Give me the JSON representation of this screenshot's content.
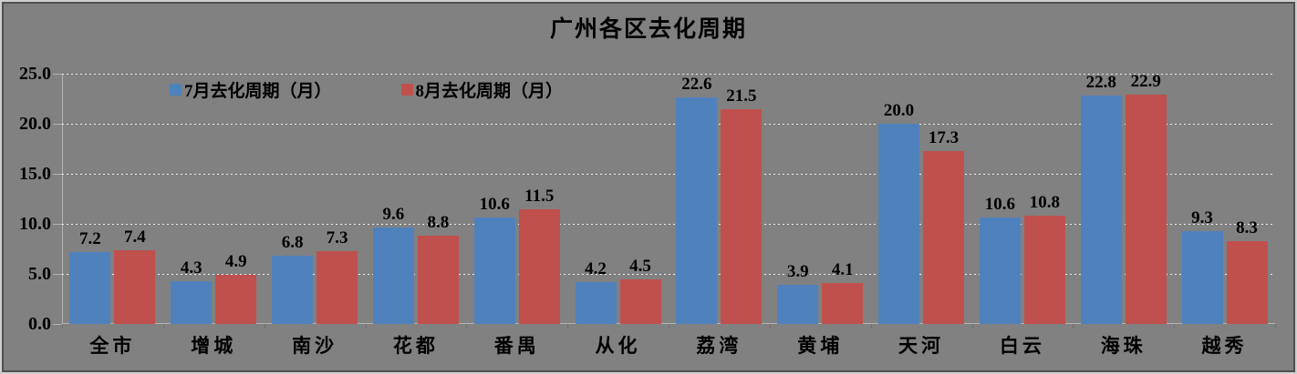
{
  "chart_data": {
    "type": "bar",
    "title": "广州各区去化周期",
    "categories": [
      "全市",
      "增城",
      "南沙",
      "花都",
      "番禺",
      "从化",
      "荔湾",
      "黄埔",
      "天河",
      "白云",
      "海珠",
      "越秀"
    ],
    "series": [
      {
        "name": "7月去化周期（月）",
        "color": "#4F81BD",
        "values": [
          7.2,
          4.3,
          6.8,
          9.6,
          10.6,
          4.2,
          22.6,
          3.9,
          20.0,
          10.6,
          22.8,
          9.3
        ]
      },
      {
        "name": "8月去化周期（月）",
        "color": "#C0504D",
        "values": [
          7.4,
          4.9,
          7.3,
          8.8,
          11.5,
          4.5,
          21.5,
          4.1,
          17.3,
          10.8,
          22.9,
          8.3
        ]
      }
    ],
    "xlabel": "",
    "ylabel": "",
    "ylim": [
      0,
      25
    ],
    "y_ticks": [
      "25.0",
      "20.0",
      "15.0",
      "10.0",
      "5.0",
      "0.0"
    ],
    "grid": "horizontal white dotted",
    "legend_position": "top-inside-left",
    "data_labels": "one-decimal above each bar"
  },
  "colors": {
    "chart_background": "#818181",
    "series_july": "#4F81BD",
    "series_august": "#C0504D"
  }
}
